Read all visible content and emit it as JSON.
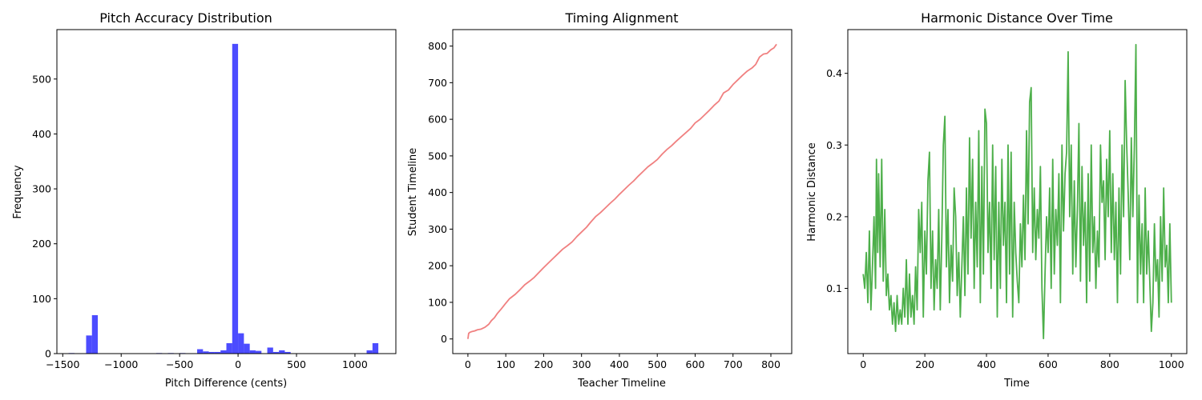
{
  "charts": [
    {
      "type": "bar",
      "title": "Pitch Accuracy Distribution",
      "xlabel": "Pitch Difference (cents)",
      "ylabel": "Frequency",
      "xlim": [
        -1550,
        1350
      ],
      "ylim": [
        0,
        590
      ],
      "xticks": [
        -1500,
        -1000,
        -500,
        0,
        500,
        1000
      ],
      "yticks": [
        0,
        100,
        200,
        300,
        400,
        500
      ],
      "color": "#0000ff",
      "opacity": 0.7,
      "bin_width": 50,
      "bars": [
        {
          "x": -1425,
          "value": 1
        },
        {
          "x": -1275,
          "value": 33
        },
        {
          "x": -1225,
          "value": 70
        },
        {
          "x": -675,
          "value": 1
        },
        {
          "x": -575,
          "value": 1
        },
        {
          "x": -475,
          "value": 1
        },
        {
          "x": -325,
          "value": 8
        },
        {
          "x": -275,
          "value": 4
        },
        {
          "x": -225,
          "value": 3
        },
        {
          "x": -175,
          "value": 3
        },
        {
          "x": -125,
          "value": 6
        },
        {
          "x": -75,
          "value": 19
        },
        {
          "x": -25,
          "value": 564
        },
        {
          "x": 25,
          "value": 37
        },
        {
          "x": 75,
          "value": 18
        },
        {
          "x": 125,
          "value": 6
        },
        {
          "x": 175,
          "value": 5
        },
        {
          "x": 275,
          "value": 11
        },
        {
          "x": 325,
          "value": 3
        },
        {
          "x": 375,
          "value": 6
        },
        {
          "x": 425,
          "value": 3
        },
        {
          "x": 1125,
          "value": 6
        },
        {
          "x": 1175,
          "value": 19
        }
      ]
    },
    {
      "type": "line",
      "title": "Timing Alignment",
      "xlabel": "Teacher Timeline",
      "ylabel": "Student Timeline",
      "xlim": [
        -40,
        855
      ],
      "ylim": [
        -40,
        845
      ],
      "xticks": [
        0,
        100,
        200,
        300,
        400,
        500,
        600,
        700,
        800
      ],
      "yticks": [
        0,
        100,
        200,
        300,
        400,
        500,
        600,
        700,
        800
      ],
      "color": "#f08080",
      "points": [
        [
          0,
          0
        ],
        [
          2,
          15
        ],
        [
          5,
          18
        ],
        [
          10,
          20
        ],
        [
          18,
          22
        ],
        [
          25,
          25
        ],
        [
          35,
          27
        ],
        [
          45,
          32
        ],
        [
          55,
          40
        ],
        [
          62,
          50
        ],
        [
          70,
          58
        ],
        [
          78,
          70
        ],
        [
          88,
          82
        ],
        [
          98,
          95
        ],
        [
          110,
          110
        ],
        [
          125,
          122
        ],
        [
          138,
          135
        ],
        [
          150,
          148
        ],
        [
          163,
          158
        ],
        [
          175,
          168
        ],
        [
          188,
          182
        ],
        [
          200,
          195
        ],
        [
          213,
          208
        ],
        [
          225,
          220
        ],
        [
          238,
          233
        ],
        [
          250,
          245
        ],
        [
          263,
          255
        ],
        [
          275,
          265
        ],
        [
          288,
          280
        ],
        [
          300,
          292
        ],
        [
          313,
          305
        ],
        [
          325,
          320
        ],
        [
          338,
          335
        ],
        [
          350,
          345
        ],
        [
          363,
          358
        ],
        [
          375,
          370
        ],
        [
          388,
          382
        ],
        [
          400,
          395
        ],
        [
          413,
          408
        ],
        [
          425,
          420
        ],
        [
          438,
          432
        ],
        [
          450,
          445
        ],
        [
          463,
          458
        ],
        [
          475,
          470
        ],
        [
          488,
          480
        ],
        [
          500,
          490
        ],
        [
          513,
          505
        ],
        [
          525,
          517
        ],
        [
          538,
          528
        ],
        [
          550,
          540
        ],
        [
          563,
          552
        ],
        [
          575,
          563
        ],
        [
          588,
          575
        ],
        [
          600,
          590
        ],
        [
          613,
          600
        ],
        [
          625,
          612
        ],
        [
          638,
          625
        ],
        [
          650,
          638
        ],
        [
          663,
          650
        ],
        [
          675,
          672
        ],
        [
          688,
          680
        ],
        [
          700,
          695
        ],
        [
          713,
          708
        ],
        [
          725,
          720
        ],
        [
          738,
          732
        ],
        [
          750,
          740
        ],
        [
          760,
          750
        ],
        [
          770,
          770
        ],
        [
          780,
          778
        ],
        [
          790,
          780
        ],
        [
          800,
          790
        ],
        [
          808,
          795
        ],
        [
          815,
          805
        ]
      ]
    },
    {
      "type": "line",
      "title": "Harmonic Distance Over Time",
      "xlabel": "Time",
      "ylabel": "Harmonic Distance",
      "xlim": [
        -50,
        1050
      ],
      "ylim": [
        0.009,
        0.461
      ],
      "xticks": [
        0,
        200,
        400,
        600,
        800,
        1000
      ],
      "yticks": [
        0.1,
        0.2,
        0.3,
        0.4
      ],
      "color": "#4daf4a",
      "points": [
        [
          0,
          0.12
        ],
        [
          5,
          0.1
        ],
        [
          10,
          0.15
        ],
        [
          15,
          0.08
        ],
        [
          20,
          0.18
        ],
        [
          25,
          0.07
        ],
        [
          30,
          0.13
        ],
        [
          35,
          0.2
        ],
        [
          40,
          0.1
        ],
        [
          43,
          0.28
        ],
        [
          47,
          0.15
        ],
        [
          50,
          0.26
        ],
        [
          55,
          0.13
        ],
        [
          60,
          0.28
        ],
        [
          65,
          0.11
        ],
        [
          70,
          0.21
        ],
        [
          75,
          0.09
        ],
        [
          80,
          0.12
        ],
        [
          85,
          0.07
        ],
        [
          90,
          0.09
        ],
        [
          95,
          0.05
        ],
        [
          100,
          0.08
        ],
        [
          105,
          0.04
        ],
        [
          110,
          0.09
        ],
        [
          115,
          0.05
        ],
        [
          120,
          0.07
        ],
        [
          125,
          0.05
        ],
        [
          130,
          0.1
        ],
        [
          135,
          0.06
        ],
        [
          140,
          0.14
        ],
        [
          145,
          0.05
        ],
        [
          150,
          0.12
        ],
        [
          155,
          0.06
        ],
        [
          160,
          0.09
        ],
        [
          165,
          0.05
        ],
        [
          170,
          0.13
        ],
        [
          175,
          0.07
        ],
        [
          180,
          0.21
        ],
        [
          185,
          0.15
        ],
        [
          190,
          0.22
        ],
        [
          195,
          0.06
        ],
        [
          200,
          0.18
        ],
        [
          205,
          0.12
        ],
        [
          210,
          0.25
        ],
        [
          215,
          0.29
        ],
        [
          220,
          0.1
        ],
        [
          225,
          0.18
        ],
        [
          230,
          0.07
        ],
        [
          235,
          0.14
        ],
        [
          240,
          0.1
        ],
        [
          245,
          0.21
        ],
        [
          250,
          0.07
        ],
        [
          255,
          0.17
        ],
        [
          260,
          0.3
        ],
        [
          265,
          0.34
        ],
        [
          270,
          0.13
        ],
        [
          275,
          0.21
        ],
        [
          280,
          0.08
        ],
        [
          285,
          0.16
        ],
        [
          290,
          0.11
        ],
        [
          295,
          0.24
        ],
        [
          300,
          0.2
        ],
        [
          305,
          0.09
        ],
        [
          310,
          0.15
        ],
        [
          315,
          0.06
        ],
        [
          320,
          0.13
        ],
        [
          325,
          0.2
        ],
        [
          330,
          0.09
        ],
        [
          335,
          0.24
        ],
        [
          340,
          0.12
        ],
        [
          345,
          0.31
        ],
        [
          350,
          0.17
        ],
        [
          355,
          0.28
        ],
        [
          360,
          0.1
        ],
        [
          365,
          0.22
        ],
        [
          370,
          0.13
        ],
        [
          375,
          0.32
        ],
        [
          380,
          0.08
        ],
        [
          385,
          0.27
        ],
        [
          390,
          0.12
        ],
        [
          395,
          0.35
        ],
        [
          400,
          0.33
        ],
        [
          405,
          0.15
        ],
        [
          410,
          0.22
        ],
        [
          415,
          0.1
        ],
        [
          420,
          0.3
        ],
        [
          425,
          0.14
        ],
        [
          430,
          0.27
        ],
        [
          435,
          0.06
        ],
        [
          440,
          0.22
        ],
        [
          445,
          0.1
        ],
        [
          450,
          0.28
        ],
        [
          455,
          0.16
        ],
        [
          460,
          0.22
        ],
        [
          465,
          0.08
        ],
        [
          470,
          0.3
        ],
        [
          475,
          0.12
        ],
        [
          480,
          0.29
        ],
        [
          485,
          0.06
        ],
        [
          490,
          0.22
        ],
        [
          495,
          0.15
        ],
        [
          500,
          0.11
        ],
        [
          505,
          0.08
        ],
        [
          510,
          0.19
        ],
        [
          515,
          0.13
        ],
        [
          520,
          0.23
        ],
        [
          525,
          0.14
        ],
        [
          530,
          0.32
        ],
        [
          535,
          0.19
        ],
        [
          540,
          0.36
        ],
        [
          545,
          0.38
        ],
        [
          550,
          0.15
        ],
        [
          555,
          0.24
        ],
        [
          560,
          0.14
        ],
        [
          565,
          0.21
        ],
        [
          570,
          0.17
        ],
        [
          575,
          0.27
        ],
        [
          580,
          0.1
        ],
        [
          585,
          0.03
        ],
        [
          590,
          0.12
        ],
        [
          595,
          0.2
        ],
        [
          600,
          0.15
        ],
        [
          605,
          0.24
        ],
        [
          610,
          0.1
        ],
        [
          615,
          0.28
        ],
        [
          620,
          0.12
        ],
        [
          625,
          0.21
        ],
        [
          630,
          0.16
        ],
        [
          635,
          0.26
        ],
        [
          640,
          0.08
        ],
        [
          645,
          0.3
        ],
        [
          650,
          0.18
        ],
        [
          655,
          0.26
        ],
        [
          660,
          0.29
        ],
        [
          665,
          0.43
        ],
        [
          670,
          0.2
        ],
        [
          675,
          0.3
        ],
        [
          680,
          0.12
        ],
        [
          685,
          0.25
        ],
        [
          690,
          0.13
        ],
        [
          695,
          0.21
        ],
        [
          700,
          0.33
        ],
        [
          705,
          0.11
        ],
        [
          710,
          0.27
        ],
        [
          715,
          0.16
        ],
        [
          720,
          0.22
        ],
        [
          725,
          0.08
        ],
        [
          730,
          0.26
        ],
        [
          735,
          0.11
        ],
        [
          740,
          0.3
        ],
        [
          745,
          0.15
        ],
        [
          750,
          0.2
        ],
        [
          755,
          0.1
        ],
        [
          760,
          0.18
        ],
        [
          765,
          0.13
        ],
        [
          770,
          0.3
        ],
        [
          775,
          0.22
        ],
        [
          780,
          0.25
        ],
        [
          785,
          0.14
        ],
        [
          790,
          0.28
        ],
        [
          795,
          0.2
        ],
        [
          800,
          0.32
        ],
        [
          805,
          0.15
        ],
        [
          810,
          0.26
        ],
        [
          815,
          0.14
        ],
        [
          820,
          0.22
        ],
        [
          825,
          0.08
        ],
        [
          830,
          0.24
        ],
        [
          835,
          0.12
        ],
        [
          840,
          0.3
        ],
        [
          845,
          0.2
        ],
        [
          850,
          0.39
        ],
        [
          855,
          0.3
        ],
        [
          860,
          0.23
        ],
        [
          865,
          0.14
        ],
        [
          870,
          0.31
        ],
        [
          875,
          0.2
        ],
        [
          880,
          0.3
        ],
        [
          885,
          0.44
        ],
        [
          890,
          0.08
        ],
        [
          895,
          0.23
        ],
        [
          900,
          0.12
        ],
        [
          905,
          0.19
        ],
        [
          910,
          0.08
        ],
        [
          915,
          0.24
        ],
        [
          920,
          0.12
        ],
        [
          925,
          0.18
        ],
        [
          930,
          0.11
        ],
        [
          935,
          0.04
        ],
        [
          940,
          0.08
        ],
        [
          945,
          0.19
        ],
        [
          950,
          0.11
        ],
        [
          955,
          0.14
        ],
        [
          960,
          0.06
        ],
        [
          965,
          0.2
        ],
        [
          970,
          0.11
        ],
        [
          975,
          0.24
        ],
        [
          980,
          0.13
        ],
        [
          985,
          0.16
        ],
        [
          990,
          0.08
        ],
        [
          995,
          0.19
        ],
        [
          1000,
          0.08
        ]
      ]
    }
  ]
}
